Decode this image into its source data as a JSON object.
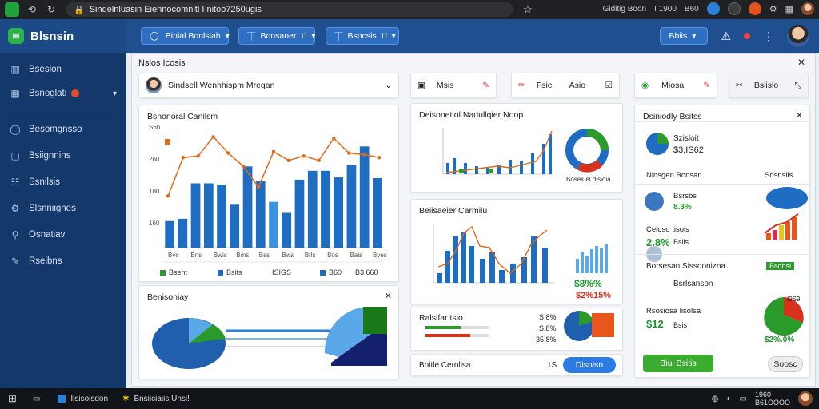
{
  "browser": {
    "url": "Sindelnluasin Eiennocomnitl I nitoo7250ugis",
    "right_text_1": "Giditig Boon",
    "right_text_2": "I 1900",
    "right_text_3": "B60"
  },
  "sidebar": {
    "brand": "Blsnsin",
    "items": [
      {
        "label": "Bsesion",
        "icon": "▥"
      },
      {
        "label": "Bsnoglati",
        "icon": "▦"
      },
      {
        "label": "Besomgnsso",
        "icon": "◯"
      },
      {
        "label": "Bsiignnins",
        "icon": "▢"
      },
      {
        "label": "Ssnilsis",
        "icon": "☷"
      },
      {
        "label": "Slsnniignes",
        "icon": "⚙"
      },
      {
        "label": "Osnatiav",
        "icon": "⚲"
      },
      {
        "label": "Rseibns",
        "icon": "✎"
      }
    ]
  },
  "topbar": {
    "filter1": "Binial Bonlsiah",
    "filter2": "Bonsaner",
    "filter2_count": "I1",
    "filter3": "Bsncsis",
    "filter3_count": "I1",
    "user_menu": "Bbiis"
  },
  "workspace": {
    "title": "Nslos Icosis",
    "user_select": "Sindsell Wenhhispm Mregan",
    "tool_a": "Msis",
    "tool_b": "Fsie",
    "tool_c": "Asio",
    "tool_d": "Miosa",
    "tool_e": "Bslislo",
    "chart1": {
      "title": "Bsnonoral Canilsm",
      "legend_1": "Bsent",
      "legend_2": "Bsits",
      "legend_3": "ISIGS",
      "legend_4": "B60",
      "legend_5": "B3 660"
    },
    "summary": {
      "title": "Benisoniay"
    },
    "chart2": {
      "title": "Deisonetiol Nadullqier Noop",
      "bottom_label": "Boseiuel disioia"
    },
    "chart3": {
      "title": "Beiisaeier Carmilu",
      "pct_green": "$8%%",
      "pct_red": "$2%15%"
    },
    "progress": {
      "title": "Ralsifar tsio",
      "v1": "S,8%",
      "v2": "S,8%",
      "v3": "35,8%"
    },
    "bottom_row": {
      "label": "Bnitle Cerolisa",
      "num": "1S",
      "button": "Disnisn"
    },
    "right_panel": {
      "title": "Dsiniodly Bsitss",
      "v_label": "Szisloit",
      "v_value": "$3,IS62",
      "sub_label": "Ninsgen Bonsan",
      "sub_right": "Sosnsiis",
      "blue_label": "Bsrsbs",
      "blue_pct": "8.3%",
      "row_label": "Celoso tisois",
      "row_value": "2.8%",
      "row_sub": "Bslis",
      "section2": "Borsesan Sissoonizna",
      "section2_tag": "Bsobsl",
      "person": "Bsrlsanson",
      "revenue_label": "Rsosiosa lisolsa",
      "revenue_value": "$12",
      "revenue_sub": "Bsis",
      "pie_pct": "$2%.0%",
      "pie_top": "I9S9",
      "btn_green": "Biui Bsitis",
      "btn_grey": "Soosc"
    }
  },
  "taskbar": {
    "app1": "Ilsisoisdon",
    "app2": "Bnsiiciaiis Unsi!",
    "time": "1960",
    "date": "B61OOOO"
  },
  "chart_data": [
    {
      "type": "bar",
      "title": "Bsnonoral Canilsm",
      "series": [
        {
          "values": [
            36,
            39,
            87,
            87,
            85,
            58,
            110,
            90,
            62,
            47,
            92,
            104,
            104,
            95,
            112,
            137,
            94
          ]
        },
        {
          "values": [
            70,
            122,
            124,
            150,
            128,
            110,
            82,
            130,
            118,
            124,
            118,
            148,
            128,
            126,
            122
          ]
        }
      ],
      "ylim": [
        0,
        160
      ],
      "y_ticks": [
        "S6b",
        "260",
        "180",
        "160"
      ],
      "x_ticks": [
        "Bvn",
        "Bns",
        "Bwis",
        "Bms",
        "Bss",
        "Bws",
        "Brls",
        "Bos",
        "Bais",
        "Bves"
      ]
    }
  ]
}
